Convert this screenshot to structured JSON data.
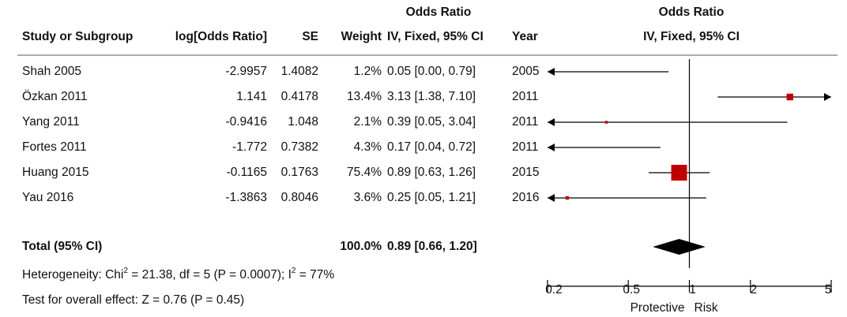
{
  "chart_data": {
    "type": "forest",
    "table_group_header": "Odds Ratio",
    "columns": [
      "Study or Subgroup",
      "log[Odds Ratio]",
      "SE",
      "Weight",
      "IV, Fixed, 95% CI",
      "Year"
    ],
    "plot_title": "Odds Ratio",
    "plot_subtitle": "IV, Fixed, 95% CI",
    "color": "#c00000",
    "studies": [
      {
        "name": "Shah 2005",
        "log_or": -2.9957,
        "se": 1.4082,
        "weight": 1.2,
        "weight_label": "1.2%",
        "or": 0.05,
        "ci": [
          0.0,
          0.79
        ],
        "ci_label": "0.05 [0.00, 0.79]",
        "year": 2005
      },
      {
        "name": "Özkan 2011",
        "log_or": 1.141,
        "se": 0.4178,
        "weight": 13.4,
        "weight_label": "13.4%",
        "or": 3.13,
        "ci": [
          1.38,
          7.1
        ],
        "ci_label": "3.13 [1.38, 7.10]",
        "year": 2011
      },
      {
        "name": "Yang 2011",
        "log_or": -0.9416,
        "se": 1.048,
        "weight": 2.1,
        "weight_label": "2.1%",
        "or": 0.39,
        "ci": [
          0.05,
          3.04
        ],
        "ci_label": "0.39 [0.05, 3.04]",
        "year": 2011
      },
      {
        "name": "Fortes 2011",
        "log_or": -1.772,
        "se": 0.7382,
        "weight": 4.3,
        "weight_label": "4.3%",
        "or": 0.17,
        "ci": [
          0.04,
          0.72
        ],
        "ci_label": "0.17 [0.04, 0.72]",
        "year": 2011
      },
      {
        "name": "Huang 2015",
        "log_or": -0.1165,
        "se": 0.1763,
        "weight": 75.4,
        "weight_label": "75.4%",
        "or": 0.89,
        "ci": [
          0.63,
          1.26
        ],
        "ci_label": "0.89 [0.63, 1.26]",
        "year": 2015
      },
      {
        "name": "Yau 2016",
        "log_or": -1.3863,
        "se": 0.8046,
        "weight": 3.6,
        "weight_label": "3.6%",
        "or": 0.25,
        "ci": [
          0.05,
          1.21
        ],
        "ci_label": "0.25 [0.05, 1.21]",
        "year": 2016
      }
    ],
    "total": {
      "name": "Total (95% CI)",
      "weight": 100.0,
      "weight_label": "100.0%",
      "or": 0.89,
      "ci": [
        0.66,
        1.2
      ],
      "ci_label": "0.89 [0.66, 1.20]"
    },
    "heterogeneity": [
      "Heterogeneity: Chi",
      "2",
      " = 21.38, df = 5 (P = 0.0007); I",
      "2",
      " = 77%"
    ],
    "overall_effect": "Test for overall effect: Z = 0.76 (P = 0.45)",
    "log_scale": true,
    "xlim": [
      0.2,
      5
    ],
    "xticks": [
      0.2,
      0.5,
      1,
      2,
      5
    ],
    "x_label_left": "Protective",
    "x_label_right": "Risk"
  }
}
